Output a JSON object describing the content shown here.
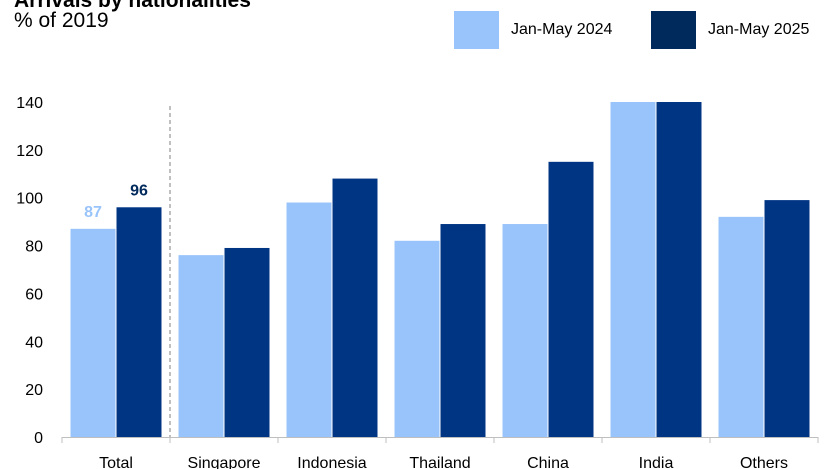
{
  "colors": {
    "series_2024": "#99c4fb",
    "series_2025": "#003584",
    "axis": "#bfbfbf",
    "divider": "#808080",
    "label_2024": "#99c4fb",
    "label_2025": "#002a5c"
  },
  "chart_data": {
    "type": "bar",
    "title": "Arrivals by nationalities",
    "subtitle": "% of 2019",
    "xlabel": "",
    "ylabel": "",
    "categories": [
      "Total",
      "Singapore",
      "Indonesia",
      "Thailand",
      "China",
      "India",
      "Others"
    ],
    "series": [
      {
        "name": "Jan-May 2024",
        "values": [
          87,
          76,
          98,
          82,
          89,
          140,
          92
        ]
      },
      {
        "name": "Jan-May 2025",
        "values": [
          96,
          79,
          108,
          89,
          115,
          140,
          99
        ]
      }
    ],
    "data_labels": {
      "category": "Total",
      "values": [
        "87",
        "96"
      ]
    },
    "yticks": [
      0,
      20,
      40,
      60,
      80,
      100,
      120,
      140
    ],
    "ylim": [
      0,
      140
    ],
    "grid": false,
    "legend_position": "top-right",
    "divider_after": "Total"
  }
}
